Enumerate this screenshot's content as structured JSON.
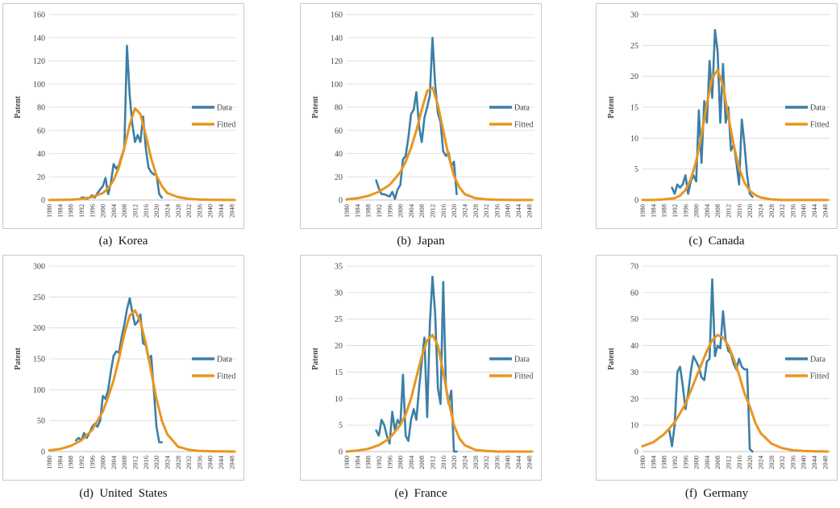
{
  "chart_data": [
    {
      "type": "line",
      "caption": "(a)  Korea",
      "ylabel": "Patent",
      "ylim": [
        0,
        160
      ],
      "yticks": [
        0,
        20,
        40,
        60,
        80,
        100,
        120,
        140,
        160
      ],
      "xlim": [
        1980,
        2050
      ],
      "xticks": [
        1980,
        1984,
        1988,
        1992,
        1996,
        2000,
        2004,
        2008,
        2012,
        2016,
        2020,
        2024,
        2028,
        2032,
        2036,
        2040,
        2044,
        2048
      ],
      "legend_position": "right",
      "series": [
        {
          "name": "Data",
          "color": "#3c7fa6",
          "x": [
            1992,
            1993,
            1994,
            1995,
            1996,
            1997,
            1998,
            1999,
            2000,
            2001,
            2002,
            2003,
            2004,
            2005,
            2006,
            2007,
            2008,
            2009,
            2010,
            2011,
            2012,
            2013,
            2014,
            2015,
            2016,
            2017,
            2018,
            2019,
            2020,
            2021,
            2022
          ],
          "y": [
            2,
            2,
            1,
            2,
            4,
            2,
            6,
            9,
            12,
            19,
            5,
            15,
            31,
            27,
            30,
            38,
            44,
            133,
            90,
            65,
            50,
            56,
            50,
            72,
            45,
            28,
            24,
            22,
            22,
            5,
            2
          ]
        },
        {
          "name": "Fitted",
          "color": "#e8961e",
          "x": [
            1980,
            1984,
            1988,
            1992,
            1996,
            2000,
            2002,
            2004,
            2006,
            2008,
            2010,
            2012,
            2014,
            2016,
            2018,
            2020,
            2022,
            2024,
            2028,
            2032,
            2036,
            2040,
            2044,
            2049
          ],
          "y": [
            0,
            0.1,
            0.3,
            0.9,
            2.5,
            6,
            10,
            17,
            28,
            45,
            65,
            79,
            74,
            56,
            36,
            21,
            12,
            6,
            2.5,
            1,
            0.4,
            0.2,
            0.1,
            0
          ]
        }
      ]
    },
    {
      "type": "line",
      "caption": "(b)  Japan",
      "ylabel": "Patent",
      "ylim": [
        0,
        160
      ],
      "yticks": [
        0,
        20,
        40,
        60,
        80,
        100,
        120,
        140,
        160
      ],
      "xlim": [
        1980,
        2050
      ],
      "xticks": [
        1980,
        1984,
        1988,
        1992,
        1996,
        2000,
        2004,
        2008,
        2012,
        2016,
        2020,
        2024,
        2028,
        2032,
        2036,
        2040,
        2044,
        2048
      ],
      "legend_position": "right",
      "series": [
        {
          "name": "Data",
          "color": "#3c7fa6",
          "x": [
            1991,
            1992,
            1993,
            1994,
            1995,
            1996,
            1997,
            1998,
            1999,
            2000,
            2001,
            2002,
            2003,
            2004,
            2005,
            2006,
            2007,
            2008,
            2009,
            2010,
            2011,
            2012,
            2013,
            2014,
            2015,
            2016,
            2017,
            2018,
            2019,
            2020,
            2021
          ],
          "y": [
            17,
            10,
            5,
            5,
            4,
            3,
            7,
            1,
            9,
            13,
            35,
            38,
            54,
            74,
            78,
            93,
            63,
            50,
            71,
            80,
            90,
            140,
            100,
            75,
            67,
            42,
            38,
            41,
            29,
            33,
            5
          ]
        },
        {
          "name": "Fitted",
          "color": "#e8961e",
          "x": [
            1980,
            1984,
            1988,
            1992,
            1996,
            2000,
            2002,
            2004,
            2006,
            2008,
            2010,
            2012,
            2014,
            2016,
            2018,
            2020,
            2022,
            2024,
            2028,
            2032,
            2036,
            2040,
            2044,
            2049
          ],
          "y": [
            0.5,
            1.5,
            3.5,
            7,
            13,
            24,
            33,
            45,
            60,
            78,
            94,
            97,
            82,
            60,
            38,
            21,
            11,
            5,
            1.5,
            0.5,
            0.2,
            0.1,
            0,
            0
          ]
        }
      ]
    },
    {
      "type": "line",
      "caption": "(c)  Canada",
      "ylabel": "Patent",
      "ylim": [
        0,
        30
      ],
      "yticks": [
        0,
        5,
        10,
        15,
        20,
        25,
        30
      ],
      "xlim": [
        1980,
        2050
      ],
      "xticks": [
        1980,
        1984,
        1988,
        1992,
        1996,
        2000,
        2004,
        2008,
        2012,
        2016,
        2020,
        2024,
        2028,
        2032,
        2036,
        2040,
        2044,
        2048
      ],
      "legend_position": "right",
      "series": [
        {
          "name": "Data",
          "color": "#3c7fa6",
          "x": [
            1991,
            1992,
            1993,
            1994,
            1995,
            1996,
            1997,
            1998,
            1999,
            2000,
            2001,
            2002,
            2003,
            2004,
            2005,
            2006,
            2007,
            2008,
            2009,
            2010,
            2011,
            2012,
            2013,
            2014,
            2015,
            2016,
            2017,
            2018,
            2019,
            2020,
            2021
          ],
          "y": [
            2,
            1,
            2.5,
            2,
            2.5,
            4,
            1,
            3,
            4,
            3,
            14.5,
            6,
            16,
            12.5,
            22.5,
            16.5,
            27.5,
            24,
            12.5,
            22,
            12.5,
            15,
            8,
            9,
            6,
            2.5,
            13,
            9,
            4,
            1,
            0.5
          ]
        },
        {
          "name": "Fitted",
          "color": "#e8961e",
          "x": [
            1980,
            1984,
            1988,
            1992,
            1994,
            1996,
            1998,
            2000,
            2002,
            2004,
            2006,
            2008,
            2010,
            2012,
            2014,
            2016,
            2018,
            2020,
            2022,
            2024,
            2028,
            2032,
            2036,
            2040,
            2044,
            2049
          ],
          "y": [
            0,
            0,
            0.1,
            0.3,
            0.7,
            1.6,
            3.3,
            6.3,
            10.5,
            15.6,
            19.8,
            21,
            18.5,
            13.5,
            8.8,
            5.2,
            2.8,
            1.5,
            0.8,
            0.4,
            0.1,
            0,
            0,
            0,
            0,
            0
          ]
        }
      ]
    },
    {
      "type": "line",
      "caption": "(d)  United  States",
      "ylabel": "Patent",
      "ylim": [
        0,
        300
      ],
      "yticks": [
        0,
        50,
        100,
        150,
        200,
        250,
        300
      ],
      "xlim": [
        1980,
        2050
      ],
      "xticks": [
        1980,
        1984,
        1988,
        1992,
        1996,
        2000,
        2004,
        2008,
        2012,
        2016,
        2020,
        2024,
        2028,
        2032,
        2036,
        2040,
        2044,
        2048
      ],
      "legend_position": "right",
      "series": [
        {
          "name": "Data",
          "color": "#3c7fa6",
          "x": [
            1990,
            1991,
            1992,
            1993,
            1994,
            1995,
            1996,
            1997,
            1998,
            1999,
            2000,
            2001,
            2002,
            2003,
            2004,
            2005,
            2006,
            2007,
            2008,
            2009,
            2010,
            2011,
            2012,
            2013,
            2014,
            2015,
            2016,
            2017,
            2018,
            2019,
            2020,
            2021,
            2022
          ],
          "y": [
            18,
            22,
            18,
            30,
            22,
            30,
            40,
            45,
            40,
            50,
            90,
            85,
            100,
            130,
            155,
            162,
            160,
            185,
            205,
            230,
            248,
            225,
            205,
            210,
            222,
            175,
            172,
            150,
            155,
            100,
            40,
            15,
            15
          ]
        },
        {
          "name": "Fitted",
          "color": "#e8961e",
          "x": [
            1980,
            1984,
            1988,
            1992,
            1996,
            2000,
            2002,
            2004,
            2006,
            2008,
            2010,
            2012,
            2014,
            2016,
            2018,
            2020,
            2022,
            2024,
            2028,
            2032,
            2036,
            2040,
            2044,
            2049
          ],
          "y": [
            2,
            4,
            9,
            18,
            35,
            65,
            88,
            115,
            150,
            190,
            220,
            228,
            210,
            175,
            130,
            85,
            50,
            28,
            8,
            3,
            1,
            0.5,
            0.2,
            0
          ]
        }
      ]
    },
    {
      "type": "line",
      "caption": "(e)  France",
      "ylabel": "Patent",
      "ylim": [
        0,
        35
      ],
      "yticks": [
        0,
        5,
        10,
        15,
        20,
        25,
        30,
        35
      ],
      "xlim": [
        1980,
        2050
      ],
      "xticks": [
        1980,
        1984,
        1988,
        1992,
        1996,
        2000,
        2004,
        2008,
        2012,
        2016,
        2020,
        2024,
        2028,
        2032,
        2036,
        2040,
        2044,
        2048
      ],
      "legend_position": "right",
      "series": [
        {
          "name": "Data",
          "color": "#3c7fa6",
          "x": [
            1991,
            1992,
            1993,
            1994,
            1995,
            1996,
            1997,
            1998,
            1999,
            2000,
            2001,
            2002,
            2003,
            2004,
            2005,
            2006,
            2007,
            2008,
            2009,
            2010,
            2011,
            2012,
            2013,
            2014,
            2015,
            2016,
            2017,
            2018,
            2019,
            2020,
            2021
          ],
          "y": [
            4,
            3,
            6,
            5,
            3,
            1.5,
            7.5,
            4,
            6,
            5,
            14.5,
            3,
            2,
            6,
            8,
            6,
            12,
            17,
            21.5,
            6.5,
            24,
            33,
            26,
            12,
            9,
            32,
            12,
            9,
            11.5,
            0,
            0
          ]
        },
        {
          "name": "Fitted",
          "color": "#e8961e",
          "x": [
            1980,
            1984,
            1988,
            1992,
            1996,
            2000,
            2002,
            2004,
            2006,
            2008,
            2010,
            2012,
            2014,
            2016,
            2018,
            2020,
            2022,
            2024,
            2028,
            2032,
            2036,
            2040,
            2044,
            2049
          ],
          "y": [
            0,
            0.2,
            0.5,
            1.2,
            2.5,
            5,
            7,
            10,
            14,
            18,
            21,
            22,
            20,
            15,
            9.5,
            5,
            2.5,
            1.2,
            0.3,
            0.1,
            0,
            0,
            0,
            0
          ]
        }
      ]
    },
    {
      "type": "line",
      "caption": "(f)  Germany",
      "ylabel": "Patent",
      "ylim": [
        0,
        70
      ],
      "yticks": [
        0,
        10,
        20,
        30,
        40,
        50,
        60,
        70
      ],
      "xlim": [
        1980,
        2050
      ],
      "xticks": [
        1980,
        1984,
        1988,
        1992,
        1996,
        2000,
        2004,
        2008,
        2012,
        2016,
        2020,
        2024,
        2028,
        2032,
        2036,
        2040,
        2044,
        2048
      ],
      "legend_position": "right",
      "series": [
        {
          "name": "Data",
          "color": "#3c7fa6",
          "x": [
            1990,
            1991,
            1992,
            1993,
            1994,
            1995,
            1996,
            1997,
            1998,
            1999,
            2000,
            2001,
            2002,
            2003,
            2004,
            2005,
            2006,
            2007,
            2008,
            2009,
            2010,
            2011,
            2012,
            2013,
            2014,
            2015,
            2016,
            2017,
            2018,
            2019,
            2020,
            2021
          ],
          "y": [
            8,
            2,
            10,
            30,
            32,
            25,
            16,
            22,
            30,
            36,
            34,
            32,
            28,
            27,
            34,
            35,
            65,
            36,
            40,
            39,
            53,
            42,
            38,
            37,
            33,
            31,
            35,
            32,
            31,
            31,
            1,
            0
          ]
        },
        {
          "name": "Fitted",
          "color": "#e8961e",
          "x": [
            1980,
            1984,
            1988,
            1992,
            1996,
            2000,
            2002,
            2004,
            2006,
            2008,
            2010,
            2012,
            2014,
            2016,
            2018,
            2020,
            2022,
            2024,
            2028,
            2032,
            2036,
            2040,
            2044,
            2049
          ],
          "y": [
            2,
            3.5,
            6.5,
            11,
            18,
            28,
            33,
            38,
            42,
            44,
            43,
            40,
            35,
            29,
            22,
            17,
            11,
            7,
            3,
            1.3,
            0.5,
            0.2,
            0.1,
            0
          ]
        }
      ]
    }
  ]
}
